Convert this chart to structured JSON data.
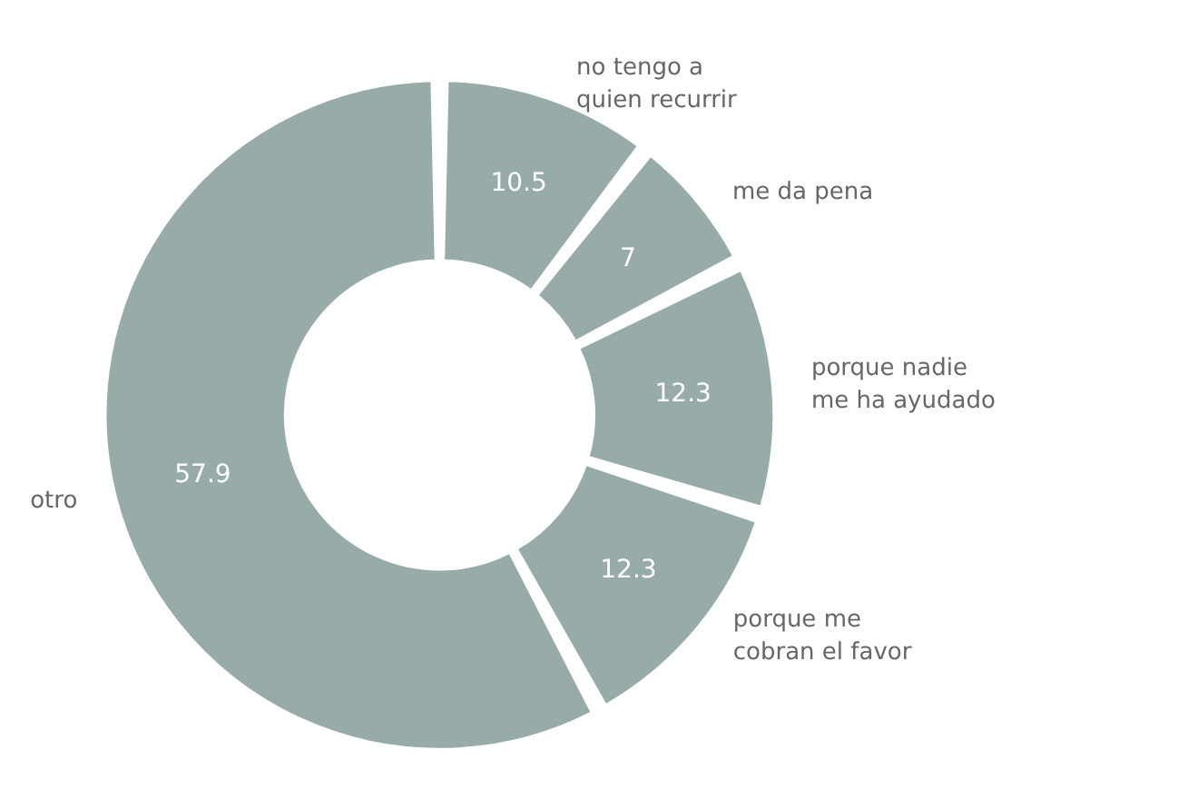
{
  "chart_data": {
    "type": "donut",
    "categories": [
      "no tengo a quien recurrir",
      "me da pena",
      "porque nadie me ha ayudado",
      "porque me cobran el favor",
      "otro"
    ],
    "values": [
      10.5,
      7,
      12.3,
      12.3,
      57.9
    ],
    "colors": [
      "#97aba8",
      "#97aba8",
      "#97aba8",
      "#97aba8",
      "#97aba8"
    ],
    "data_labels": true,
    "legend": false
  }
}
